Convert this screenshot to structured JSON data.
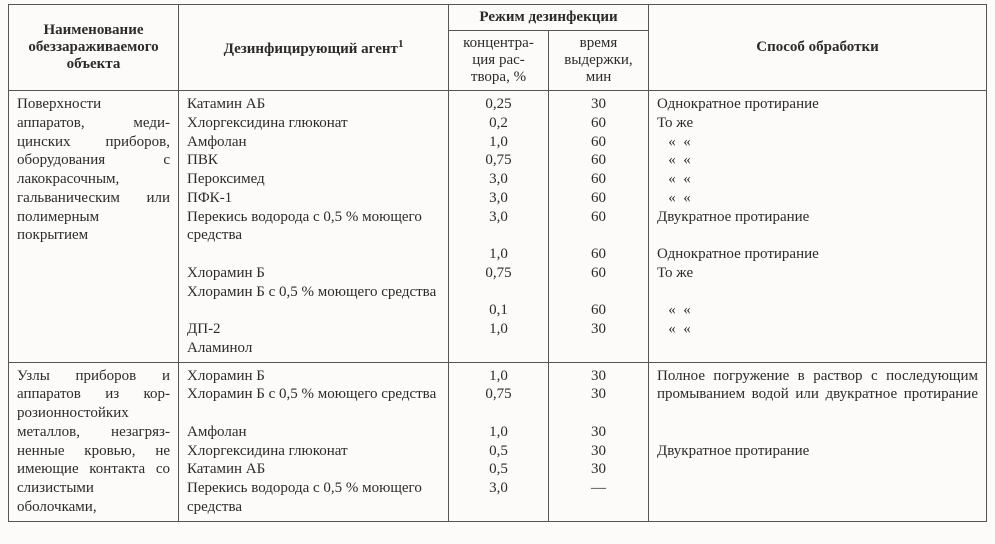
{
  "headers": {
    "object": "Наименование обеззараживаемого объекта",
    "agent": "Дезинфицирующий агент",
    "agent_sup": "1",
    "regime": "Режим дезинфекции",
    "concentration": "концентра-\nция рас-\nтвора, %",
    "time": "время\nвыдержки,\nмин",
    "method": "Способ обработки"
  },
  "rows": [
    {
      "object": "Поверхности аппаратов, меди­цинских прибо­ров, оборудования с лакокрасочным, гальваническим или полимерным покрытием",
      "agents": [
        "Катамин АБ",
        "Хлоргексидина глюконат",
        "Амфолан",
        "ПВК",
        "Пероксимед",
        "ПФК-1",
        "Перекись водорода с 0,5 % моющего средства",
        "Хлорамин Б",
        "Хлорамин Б с 0,5 % моющего средства",
        "ДП-2",
        "Аламинол"
      ],
      "conc": [
        "0,25",
        "0,2",
        "1,0",
        "0,75",
        "3,0",
        "3,0",
        "3,0",
        "1,0",
        "0,75",
        "0,1",
        "1,0"
      ],
      "time": [
        "30",
        "60",
        "60",
        "60",
        "60",
        "60",
        "60",
        "60",
        "60",
        "60",
        "30"
      ],
      "method": [
        "Однократное протирание",
        "То же",
        "   «  «",
        "   «  «",
        "   «  «",
        "   «  «",
        "Двукратное протирание",
        "Однократное протирание",
        "То же",
        "   «  «",
        "   «  «"
      ]
    },
    {
      "object": "Узлы приборов и аппаратов из кор­розионностойких металлов, незагряз­ненные кровью, не имеющие кон­такта со слизисты­ми оболочками,",
      "agents": [
        "Хлорамин Б",
        "Хлорамин Б с 0,5 % моющего средства",
        "Амфолан",
        "Хлоргексидина глюконат",
        "Катамин АБ",
        "Перекись водорода с 0,5 % моющего средства"
      ],
      "conc": [
        "1,0",
        "0,75",
        "1,0",
        "0,5",
        "0,5",
        "3,0"
      ],
      "time": [
        "30",
        "30",
        "30",
        "30",
        "30",
        "—"
      ],
      "method_block": "Полное погружение в раствор с последующим промыванием во­дой или двукратное протирание",
      "method_after_gap": "Двукратное протирание"
    }
  ]
}
